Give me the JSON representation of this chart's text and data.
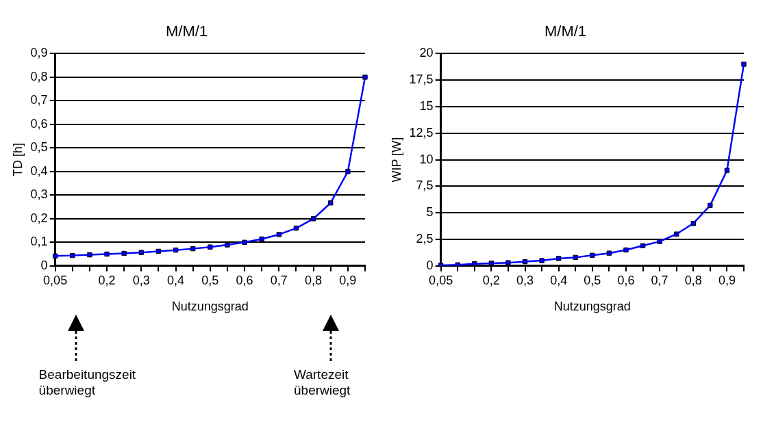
{
  "chart_data": [
    {
      "type": "line",
      "title": "M/M/1",
      "xlabel": "Nutzungsgrad",
      "ylabel": "TD [h]",
      "categories": [
        "0,05",
        null,
        null,
        "0,2",
        null,
        "0,3",
        null,
        "0,4",
        null,
        "0,5",
        null,
        "0,6",
        null,
        "0,7",
        null,
        "0,8",
        null,
        "0,9",
        null
      ],
      "series": [
        {
          "color": "#0000ff",
          "values": [
            0.042,
            0.044,
            0.047,
            0.05,
            0.053,
            0.057,
            0.062,
            0.067,
            0.073,
            0.08,
            0.089,
            0.1,
            0.114,
            0.133,
            0.16,
            0.2,
            0.267,
            0.4,
            0.8
          ]
        }
      ],
      "ylim": [
        0,
        0.9
      ],
      "yticks": [
        0,
        {
          "value": 0.1,
          "label": "0,1"
        },
        {
          "value": 0.2,
          "label": "0,2"
        },
        {
          "value": 0.3,
          "label": "0,3"
        },
        {
          "value": 0.4,
          "label": "0,4"
        },
        {
          "value": 0.5,
          "label": "0,5"
        },
        {
          "value": 0.6,
          "label": "0,6"
        },
        {
          "value": 0.7,
          "label": "0,7"
        },
        {
          "value": 0.8,
          "label": "0,8"
        },
        {
          "value": 0.9,
          "label": "0,9"
        }
      ],
      "grid": "y",
      "legend": false,
      "marker": "square",
      "line_style": "solid",
      "annotations": [
        "Bearbeitungszeit überwiegt",
        "Wartezeit überwiegt"
      ]
    },
    {
      "type": "line",
      "title": "M/M/1",
      "xlabel": "Nutzungsgrad",
      "ylabel": "WIP [W]",
      "categories": [
        "0,05",
        null,
        null,
        "0,2",
        null,
        "0,3",
        null,
        "0,4",
        null,
        "0,5",
        null,
        "0,6",
        null,
        "0,7",
        null,
        "0,8",
        null,
        "0,9",
        null
      ],
      "series": [
        {
          "color": "#0000ff",
          "values": [
            0.05,
            0.1,
            0.2,
            0.25,
            0.3,
            0.4,
            0.5,
            0.7,
            0.8,
            1,
            1.2,
            1.5,
            1.9,
            2.3,
            3,
            4,
            5.7,
            9,
            19
          ]
        }
      ],
      "ylim": [
        0,
        20
      ],
      "yticks": [
        0,
        {
          "value": 2.5,
          "label": "2,5"
        },
        5,
        {
          "value": 7.5,
          "label": "7,5"
        },
        10,
        {
          "value": 12.5,
          "label": "12,5"
        },
        15,
        {
          "value": 17.5,
          "label": "17,5"
        },
        20
      ],
      "grid": "y",
      "legend": false,
      "marker": "square",
      "line_style": "solid"
    }
  ]
}
